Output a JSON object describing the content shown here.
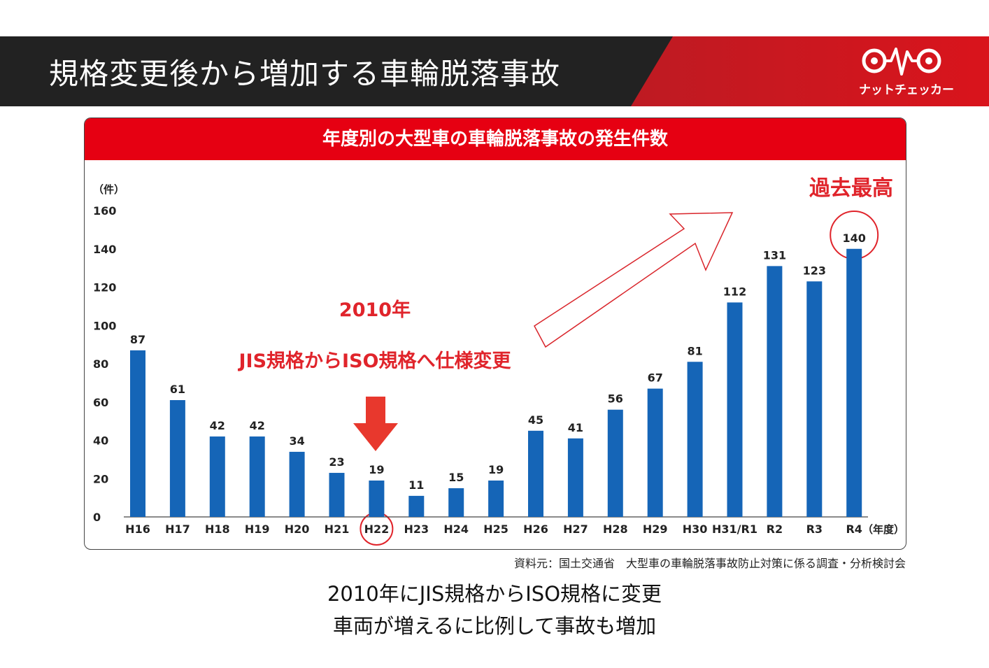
{
  "header": {
    "title": "規格変更後から増加する車輪脱落事故",
    "logo_text": "ナットチェッカー"
  },
  "chart_data": {
    "type": "bar",
    "title": "年度別の大型車の車輪脱落事故の発生件数",
    "ylabel": "（件）",
    "xlabel": "（年度）",
    "ylim": [
      0,
      160
    ],
    "yticks": [
      0,
      20,
      40,
      60,
      80,
      100,
      120,
      140,
      160
    ],
    "categories": [
      "H16",
      "H17",
      "H18",
      "H19",
      "H20",
      "H21",
      "H22",
      "H23",
      "H24",
      "H25",
      "H26",
      "H27",
      "H28",
      "H29",
      "H30",
      "H31/R1",
      "R2",
      "R3",
      "R4"
    ],
    "values": [
      87,
      61,
      42,
      42,
      34,
      23,
      19,
      11,
      15,
      19,
      45,
      41,
      56,
      67,
      81,
      112,
      131,
      123,
      140
    ],
    "grid": false,
    "legend": "none",
    "bar_color": "#1565b7",
    "annotations": {
      "change_year": "2010年",
      "change_text": "JIS規格からISO規格へ仕様変更",
      "record_label": "過去最高"
    }
  },
  "colors": {
    "accent": "#e60012",
    "bar": "#1565b7",
    "header_bg": "#222222"
  },
  "source": "資料元：国土交通省　大型車の車輪脱落事故防止対策に係る調査・分析検討会",
  "caption": {
    "line1": "2010年にJIS規格からISO規格に変更",
    "line2": "車両が増えるに比例して事故も増加"
  }
}
